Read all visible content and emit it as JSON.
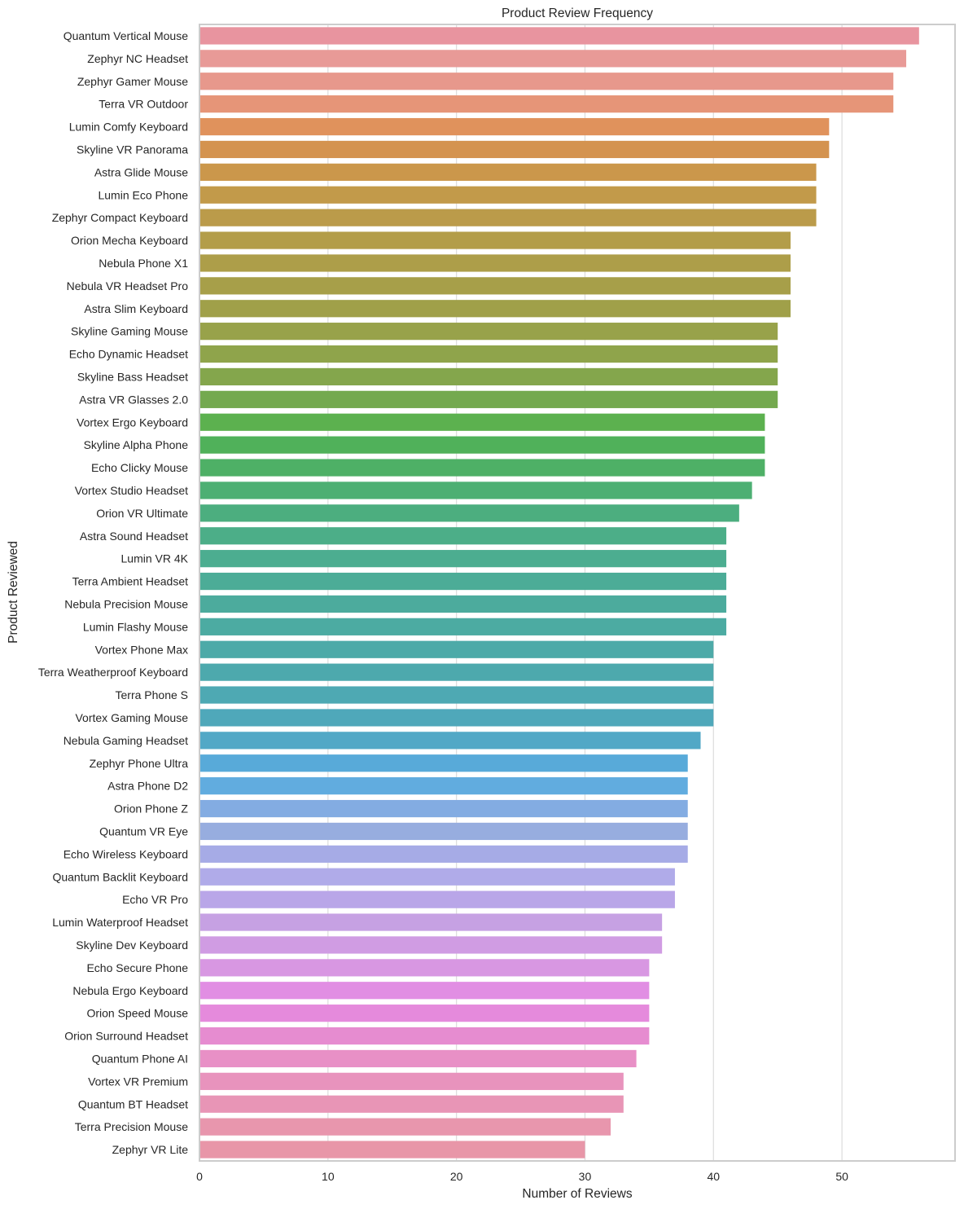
{
  "chart_data": {
    "type": "bar",
    "orientation": "horizontal",
    "title": "Product Review Frequency",
    "xlabel": "Number of Reviews",
    "ylabel": "Product Reviewed",
    "xlim": [
      0,
      58.8
    ],
    "xticks": [
      0,
      10,
      20,
      30,
      40,
      50
    ],
    "xtick_labels": [
      "0",
      "10",
      "20",
      "30",
      "40",
      "50"
    ],
    "grid": true,
    "categories": [
      "Quantum Vertical Mouse",
      "Zephyr NC Headset",
      "Zephyr Gamer Mouse",
      "Terra VR Outdoor",
      "Lumin Comfy Keyboard",
      "Skyline VR Panorama",
      "Astra Glide Mouse",
      "Lumin Eco Phone",
      "Zephyr Compact Keyboard",
      "Orion Mecha Keyboard",
      "Nebula Phone X1",
      "Nebula VR Headset Pro",
      "Astra Slim Keyboard",
      "Skyline Gaming Mouse",
      "Echo Dynamic Headset",
      "Skyline Bass Headset",
      "Astra VR Glasses 2.0",
      "Vortex Ergo Keyboard",
      "Skyline Alpha Phone",
      "Echo Clicky Mouse",
      "Vortex Studio Headset",
      "Orion VR Ultimate",
      "Astra Sound Headset",
      "Lumin VR 4K",
      "Terra Ambient Headset",
      "Nebula Precision Mouse",
      "Lumin Flashy Mouse",
      "Vortex Phone Max",
      "Terra Weatherproof Keyboard",
      "Terra Phone S",
      "Vortex Gaming Mouse",
      "Nebula Gaming Headset",
      "Zephyr Phone Ultra",
      "Astra Phone D2",
      "Orion Phone Z",
      "Quantum VR Eye",
      "Echo Wireless Keyboard",
      "Quantum Backlit Keyboard",
      "Echo VR Pro",
      "Lumin Waterproof Headset",
      "Skyline Dev Keyboard",
      "Echo Secure Phone",
      "Nebula Ergo Keyboard",
      "Orion Speed Mouse",
      "Orion Surround Headset",
      "Quantum Phone AI",
      "Vortex VR Premium",
      "Quantum BT Headset",
      "Terra Precision Mouse",
      "Zephyr VR Lite"
    ],
    "values": [
      56,
      55,
      54,
      54,
      49,
      49,
      48,
      48,
      48,
      46,
      46,
      46,
      46,
      45,
      45,
      45,
      45,
      44,
      44,
      44,
      43,
      42,
      41,
      41,
      41,
      41,
      41,
      40,
      40,
      40,
      40,
      39,
      38,
      38,
      38,
      38,
      38,
      37,
      37,
      36,
      36,
      35,
      35,
      35,
      35,
      34,
      33,
      33,
      32,
      30
    ],
    "colors": [
      "#e8949f",
      "#e89a97",
      "#e7988c",
      "#e69578",
      "#e0925c",
      "#d4934f",
      "#cb974b",
      "#c29a4a",
      "#bb9b4a",
      "#b39d49",
      "#ad9e49",
      "#a79f49",
      "#a0a049",
      "#98a24a",
      "#8fa44b",
      "#84a64c",
      "#74a94f",
      "#5cb14f",
      "#50b15a",
      "#4eb066",
      "#4daf73",
      "#4cae7f",
      "#4cae88",
      "#4cad90",
      "#4cac97",
      "#4cab9d",
      "#4caba2",
      "#4daaa8",
      "#4da9ad",
      "#4ea9b3",
      "#4fa8ba",
      "#52a8c6",
      "#58aad9",
      "#61acdf",
      "#83ace2",
      "#97addf",
      "#a6abe6",
      "#b0abe9",
      "#b9a6e8",
      "#c6a1e3",
      "#d09ce3",
      "#d897e2",
      "#e18ee3",
      "#e58adc",
      "#e68cd0",
      "#e890c6",
      "#e893bd",
      "#e895b6",
      "#e896ad",
      "#e896a8"
    ],
    "grid_color": "#dcdcdc",
    "frame_color": "#cccccc"
  }
}
